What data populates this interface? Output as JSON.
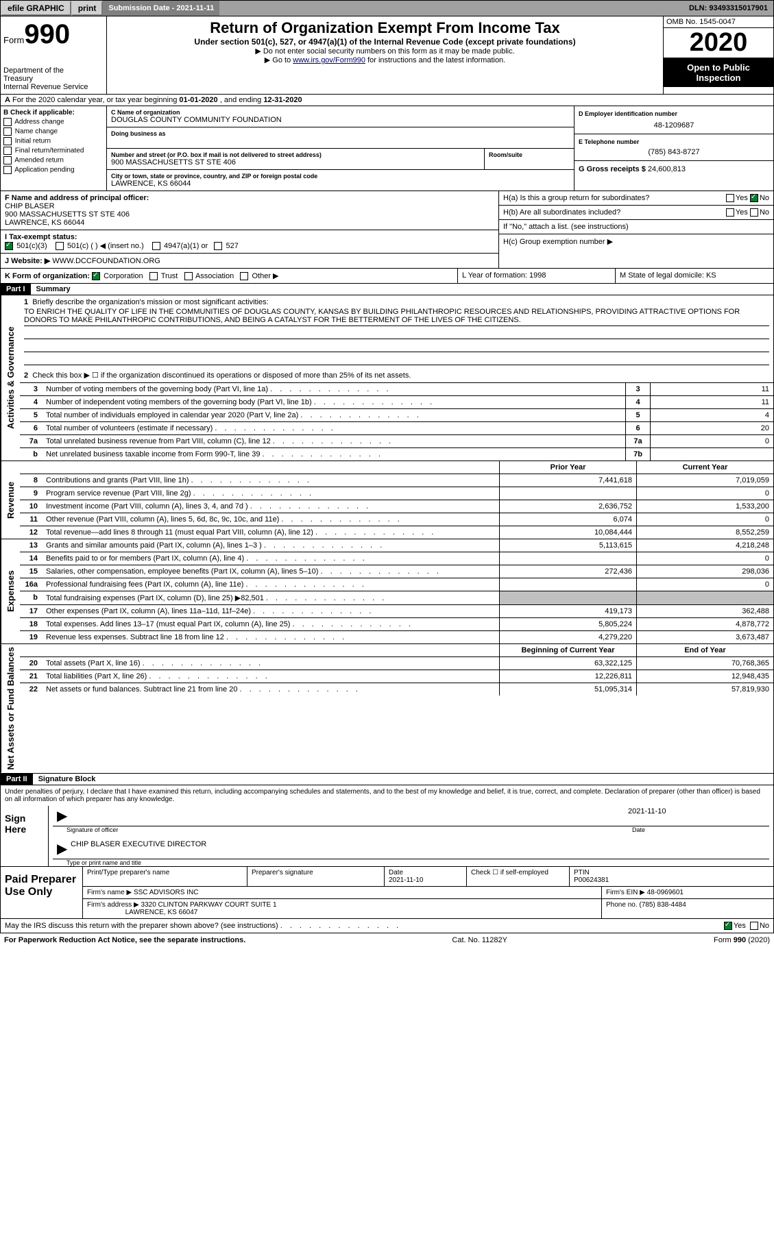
{
  "topbar": {
    "efile": "efile GRAPHIC",
    "print": "print",
    "submission_label": "Submission Date - 2021-11-11",
    "dln": "DLN: 93493315017901"
  },
  "header": {
    "form_prefix": "Form",
    "form_num": "990",
    "dept": "Department of the Treasury\nInternal Revenue Service",
    "title": "Return of Organization Exempt From Income Tax",
    "subtitle": "Under section 501(c), 527, or 4947(a)(1) of the Internal Revenue Code (except private foundations)",
    "inst1": "▶ Do not enter social security numbers on this form as it may be made public.",
    "inst2_pre": "▶ Go to ",
    "inst2_link": "www.irs.gov/Form990",
    "inst2_post": " for instructions and the latest information.",
    "omb": "OMB No. 1545-0047",
    "year": "2020",
    "open": "Open to Public Inspection"
  },
  "lineA": "A For the 2020 calendar year, or tax year beginning 01-01-2020    , and ending 12-31-2020",
  "B": {
    "title": "B Check if applicable:",
    "opts": [
      "Address change",
      "Name change",
      "Initial return",
      "Final return/terminated",
      "Amended return",
      "Application pending"
    ]
  },
  "C": {
    "name_lbl": "C Name of organization",
    "name": "DOUGLAS COUNTY COMMUNITY FOUNDATION",
    "dba_lbl": "Doing business as",
    "addr_lbl": "Number and street (or P.O. box if mail is not delivered to street address)",
    "room_lbl": "Room/suite",
    "addr": "900 MASSACHUSETTS ST STE 406",
    "city_lbl": "City or town, state or province, country, and ZIP or foreign postal code",
    "city": "LAWRENCE, KS  66044"
  },
  "D": {
    "lbl": "D Employer identification number",
    "val": "48-1209687"
  },
  "E": {
    "lbl": "E Telephone number",
    "val": "(785) 843-8727"
  },
  "G": {
    "lbl": "G Gross receipts $",
    "val": "24,600,813"
  },
  "F": {
    "lbl": "F  Name and address of principal officer:",
    "name": "CHIP BLASER",
    "addr": "900 MASSACHUSETTS ST STE 406",
    "city": "LAWRENCE, KS  66044"
  },
  "H": {
    "a": "H(a)  Is this a group return for subordinates?",
    "b": "H(b)  Are all subordinates included?",
    "b_note": "If \"No,\" attach a list. (see instructions)",
    "c": "H(c)  Group exemption number ▶"
  },
  "I": {
    "lbl": "I   Tax-exempt status:",
    "opts": [
      "501(c)(3)",
      "501(c) (  ) ◀ (insert no.)",
      "4947(a)(1) or",
      "527"
    ]
  },
  "J": {
    "lbl": "J   Website: ▶",
    "val": "WWW.DCCFOUNDATION.ORG"
  },
  "K": {
    "lbl": "K Form of organization:",
    "opts": [
      "Corporation",
      "Trust",
      "Association",
      "Other ▶"
    ]
  },
  "L": "L Year of formation: 1998",
  "M": "M State of legal domicile: KS",
  "part1": {
    "num": "Part I",
    "title": "Summary"
  },
  "summary": {
    "l1_lbl": "Briefly describe the organization's mission or most significant activities:",
    "mission": "TO ENRICH THE QUALITY OF LIFE IN THE COMMUNITIES OF DOUGLAS COUNTY, KANSAS BY BUILDING PHILANTHROPIC RESOURCES AND RELATIONSHIPS, PROVIDING ATTRACTIVE OPTIONS FOR DONORS TO MAKE PHILANTHROPIC CONTRIBUTIONS, AND BEING A CATALYST FOR THE BETTERMENT OF THE LIVES OF THE CITIZENS.",
    "l2": "Check this box ▶ ☐  if the organization discontinued its operations or disposed of more than 25% of its net assets.",
    "lines": [
      {
        "n": "3",
        "d": "Number of voting members of the governing body (Part VI, line 1a)",
        "box": "3",
        "v": "11"
      },
      {
        "n": "4",
        "d": "Number of independent voting members of the governing body (Part VI, line 1b)",
        "box": "4",
        "v": "11"
      },
      {
        "n": "5",
        "d": "Total number of individuals employed in calendar year 2020 (Part V, line 2a)",
        "box": "5",
        "v": "4"
      },
      {
        "n": "6",
        "d": "Total number of volunteers (estimate if necessary)",
        "box": "6",
        "v": "20"
      },
      {
        "n": "7a",
        "d": "Total unrelated business revenue from Part VIII, column (C), line 12",
        "box": "7a",
        "v": "0"
      },
      {
        "n": "b",
        "d": "Net unrelated business taxable income from Form 990-T, line 39",
        "box": "7b",
        "v": ""
      }
    ]
  },
  "rev_hdr": {
    "prior": "Prior Year",
    "current": "Current Year"
  },
  "sections": [
    {
      "side": "Revenue",
      "rows": [
        {
          "n": "8",
          "d": "Contributions and grants (Part VIII, line 1h)",
          "p": "7,441,618",
          "c": "7,019,059"
        },
        {
          "n": "9",
          "d": "Program service revenue (Part VIII, line 2g)",
          "p": "",
          "c": "0"
        },
        {
          "n": "10",
          "d": "Investment income (Part VIII, column (A), lines 3, 4, and 7d )",
          "p": "2,636,752",
          "c": "1,533,200"
        },
        {
          "n": "11",
          "d": "Other revenue (Part VIII, column (A), lines 5, 6d, 8c, 9c, 10c, and 11e)",
          "p": "6,074",
          "c": "0"
        },
        {
          "n": "12",
          "d": "Total revenue—add lines 8 through 11 (must equal Part VIII, column (A), line 12)",
          "p": "10,084,444",
          "c": "8,552,259"
        }
      ]
    },
    {
      "side": "Expenses",
      "rows": [
        {
          "n": "13",
          "d": "Grants and similar amounts paid (Part IX, column (A), lines 1–3 )",
          "p": "5,113,615",
          "c": "4,218,248"
        },
        {
          "n": "14",
          "d": "Benefits paid to or for members (Part IX, column (A), line 4)",
          "p": "",
          "c": "0"
        },
        {
          "n": "15",
          "d": "Salaries, other compensation, employee benefits (Part IX, column (A), lines 5–10)",
          "p": "272,436",
          "c": "298,036"
        },
        {
          "n": "16a",
          "d": "Professional fundraising fees (Part IX, column (A), line 11e)",
          "p": "",
          "c": "0"
        },
        {
          "n": "b",
          "d": "Total fundraising expenses (Part IX, column (D), line 25) ▶82,501",
          "p": "shaded",
          "c": "shaded"
        },
        {
          "n": "17",
          "d": "Other expenses (Part IX, column (A), lines 11a–11d, 11f–24e)",
          "p": "419,173",
          "c": "362,488"
        },
        {
          "n": "18",
          "d": "Total expenses. Add lines 13–17 (must equal Part IX, column (A), line 25)",
          "p": "5,805,224",
          "c": "4,878,772"
        },
        {
          "n": "19",
          "d": "Revenue less expenses. Subtract line 18 from line 12",
          "p": "4,279,220",
          "c": "3,673,487"
        }
      ]
    },
    {
      "side": "Net Assets or Fund Balances",
      "hdr": {
        "prior": "Beginning of Current Year",
        "current": "End of Year"
      },
      "rows": [
        {
          "n": "20",
          "d": "Total assets (Part X, line 16)",
          "p": "63,322,125",
          "c": "70,768,365"
        },
        {
          "n": "21",
          "d": "Total liabilities (Part X, line 26)",
          "p": "12,226,811",
          "c": "12,948,435"
        },
        {
          "n": "22",
          "d": "Net assets or fund balances. Subtract line 21 from line 20",
          "p": "51,095,314",
          "c": "57,819,930"
        }
      ]
    }
  ],
  "part2": {
    "num": "Part II",
    "title": "Signature Block"
  },
  "sig": {
    "declaration": "Under penalties of perjury, I declare that I have examined this return, including accompanying schedules and statements, and to the best of my knowledge and belief, it is true, correct, and complete. Declaration of preparer (other than officer) is based on all information of which preparer has any knowledge.",
    "sign_here": "Sign Here",
    "date": "2021-11-10",
    "sig_lbl": "Signature of officer",
    "date_lbl": "Date",
    "name": "CHIP BLASER  EXECUTIVE DIRECTOR",
    "name_lbl": "Type or print name and title"
  },
  "paid": {
    "title": "Paid Preparer Use Only",
    "h1": "Print/Type preparer's name",
    "h2": "Preparer's signature",
    "h3": "Date",
    "h3v": "2021-11-10",
    "h4": "Check ☐ if self-employed",
    "h5": "PTIN",
    "h5v": "P00624381",
    "firm_lbl": "Firm's name    ▶",
    "firm": "SSC ADVISORS INC",
    "ein_lbl": "Firm's EIN ▶",
    "ein": "48-0969601",
    "addr_lbl": "Firm's address ▶",
    "addr": "3320 CLINTON PARKWAY COURT SUITE 1",
    "addr2": "LAWRENCE, KS  66047",
    "phone_lbl": "Phone no.",
    "phone": "(785) 838-4484"
  },
  "footer": {
    "discuss": "May the IRS discuss this return with the preparer shown above? (see instructions)",
    "paperwork": "For Paperwork Reduction Act Notice, see the separate instructions.",
    "cat": "Cat. No. 11282Y",
    "form": "Form 990 (2020)"
  },
  "side_labels": {
    "activities": "Activities & Governance"
  },
  "colors": {
    "topbar_bg": "#a0a0a0",
    "btn_bg": "#d0d0d0",
    "label_bg": "#808080",
    "black": "#000000",
    "white": "#ffffff",
    "link": "#000066",
    "check_green": "#0a7c2f",
    "shaded": "#c0c0c0"
  }
}
